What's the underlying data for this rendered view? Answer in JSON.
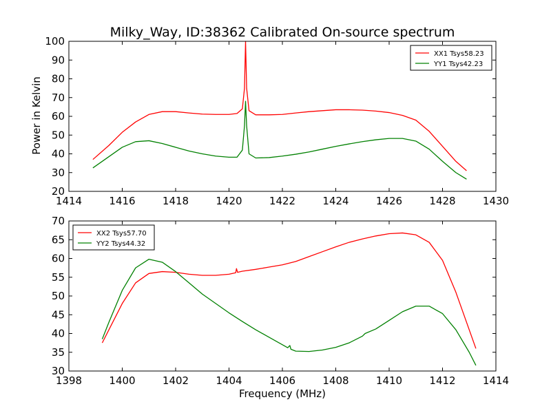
{
  "figure": {
    "title": "Milky_Way, ID:38362 Calibrated On-source spectrum",
    "ylabel": "Power in Kelvin",
    "xlabel": "Frequency (MHz)"
  },
  "chart_data": [
    {
      "type": "line",
      "xlim": [
        1414,
        1430
      ],
      "ylim": [
        20,
        100
      ],
      "xticks": [
        1414,
        1416,
        1418,
        1420,
        1422,
        1424,
        1426,
        1428,
        1430
      ],
      "yticks": [
        20,
        30,
        40,
        50,
        60,
        70,
        80,
        90,
        100
      ],
      "ylabel": "Power in Kelvin",
      "grid": false,
      "legend_position": "top-right",
      "series": [
        {
          "name": "XX1 Tsys58.23",
          "color": "#ff0000",
          "points": [
            [
              1414.9,
              37
            ],
            [
              1415.5,
              44.5
            ],
            [
              1416.0,
              51.5
            ],
            [
              1416.5,
              57
            ],
            [
              1417.0,
              61
            ],
            [
              1417.5,
              62.5
            ],
            [
              1418.0,
              62.5
            ],
            [
              1418.5,
              61.8
            ],
            [
              1419.0,
              61.2
            ],
            [
              1419.5,
              61
            ],
            [
              1420.0,
              61
            ],
            [
              1420.3,
              61.5
            ],
            [
              1420.5,
              64
            ],
            [
              1420.58,
              75
            ],
            [
              1420.62,
              100
            ],
            [
              1420.66,
              75
            ],
            [
              1420.75,
              63
            ],
            [
              1421.0,
              60.8
            ],
            [
              1421.5,
              60.8
            ],
            [
              1422.0,
              61
            ],
            [
              1422.5,
              61.8
            ],
            [
              1423.0,
              62.5
            ],
            [
              1423.5,
              63
            ],
            [
              1424.0,
              63.5
            ],
            [
              1424.5,
              63.5
            ],
            [
              1425.0,
              63.3
            ],
            [
              1425.5,
              62.8
            ],
            [
              1426.0,
              62
            ],
            [
              1426.5,
              60.5
            ],
            [
              1427.0,
              58
            ],
            [
              1427.5,
              52
            ],
            [
              1428.0,
              44
            ],
            [
              1428.5,
              36
            ],
            [
              1428.9,
              31
            ]
          ]
        },
        {
          "name": "YY1 Tsys42.23",
          "color": "#008000",
          "points": [
            [
              1414.9,
              32.5
            ],
            [
              1415.5,
              38.5
            ],
            [
              1416.0,
              43.5
            ],
            [
              1416.5,
              46.5
            ],
            [
              1417.0,
              47
            ],
            [
              1417.5,
              45.5
            ],
            [
              1418.0,
              43.5
            ],
            [
              1418.5,
              41.5
            ],
            [
              1419.0,
              40
            ],
            [
              1419.5,
              38.8
            ],
            [
              1420.0,
              38.2
            ],
            [
              1420.3,
              38.2
            ],
            [
              1420.5,
              42
            ],
            [
              1420.58,
              55
            ],
            [
              1420.62,
              68
            ],
            [
              1420.66,
              55
            ],
            [
              1420.75,
              40
            ],
            [
              1421.0,
              37.8
            ],
            [
              1421.5,
              38
            ],
            [
              1422.0,
              38.8
            ],
            [
              1422.5,
              39.8
            ],
            [
              1423.0,
              41
            ],
            [
              1423.5,
              42.5
            ],
            [
              1424.0,
              44
            ],
            [
              1424.5,
              45.3
            ],
            [
              1425.0,
              46.5
            ],
            [
              1425.5,
              47.5
            ],
            [
              1426.0,
              48.2
            ],
            [
              1426.5,
              48.2
            ],
            [
              1427.0,
              46.8
            ],
            [
              1427.5,
              42.5
            ],
            [
              1428.0,
              36
            ],
            [
              1428.5,
              30
            ],
            [
              1428.9,
              26.5
            ]
          ]
        }
      ]
    },
    {
      "type": "line",
      "xlim": [
        1398,
        1414
      ],
      "ylim": [
        30,
        70
      ],
      "xticks": [
        1398,
        1400,
        1402,
        1404,
        1406,
        1408,
        1410,
        1412,
        1414
      ],
      "yticks": [
        30,
        35,
        40,
        45,
        50,
        55,
        60,
        65,
        70
      ],
      "xlabel": "Frequency (MHz)",
      "grid": false,
      "legend_position": "top-left",
      "series": [
        {
          "name": "XX2 Tsys57.70",
          "color": "#ff0000",
          "points": [
            [
              1399.25,
              37.5
            ],
            [
              1399.5,
              41
            ],
            [
              1400.0,
              48
            ],
            [
              1400.5,
              53.5
            ],
            [
              1401.0,
              56
            ],
            [
              1401.5,
              56.5
            ],
            [
              1402.0,
              56.3
            ],
            [
              1402.5,
              55.8
            ],
            [
              1403.0,
              55.5
            ],
            [
              1403.5,
              55.5
            ],
            [
              1404.0,
              55.8
            ],
            [
              1404.25,
              56.2
            ],
            [
              1404.28,
              57.3
            ],
            [
              1404.32,
              56.3
            ],
            [
              1404.5,
              56.6
            ],
            [
              1405.0,
              57.1
            ],
            [
              1405.5,
              57.7
            ],
            [
              1406.0,
              58.3
            ],
            [
              1406.5,
              59.2
            ],
            [
              1407.0,
              60.5
            ],
            [
              1407.5,
              61.8
            ],
            [
              1408.0,
              63.1
            ],
            [
              1408.5,
              64.3
            ],
            [
              1409.0,
              65.2
            ],
            [
              1409.5,
              66
            ],
            [
              1410.0,
              66.6
            ],
            [
              1410.5,
              66.8
            ],
            [
              1411.0,
              66.3
            ],
            [
              1411.5,
              64.3
            ],
            [
              1412.0,
              59.5
            ],
            [
              1412.5,
              51
            ],
            [
              1413.0,
              41
            ],
            [
              1413.25,
              36
            ]
          ]
        },
        {
          "name": "YY2 Tsys44.32",
          "color": "#008000",
          "points": [
            [
              1399.25,
              38.5
            ],
            [
              1399.5,
              43
            ],
            [
              1400.0,
              51.5
            ],
            [
              1400.5,
              57.5
            ],
            [
              1401.0,
              59.8
            ],
            [
              1401.5,
              59
            ],
            [
              1402.0,
              56.5
            ],
            [
              1402.5,
              53.5
            ],
            [
              1403.0,
              50.5
            ],
            [
              1403.5,
              48
            ],
            [
              1404.0,
              45.5
            ],
            [
              1404.5,
              43.2
            ],
            [
              1405.0,
              41
            ],
            [
              1405.5,
              39
            ],
            [
              1406.0,
              37
            ],
            [
              1406.2,
              36.2
            ],
            [
              1406.28,
              36.8
            ],
            [
              1406.32,
              35.8
            ],
            [
              1406.5,
              35.3
            ],
            [
              1407.0,
              35.2
            ],
            [
              1407.5,
              35.6
            ],
            [
              1408.0,
              36.3
            ],
            [
              1408.5,
              37.5
            ],
            [
              1409.0,
              39.3
            ],
            [
              1409.1,
              40
            ],
            [
              1409.5,
              41.2
            ],
            [
              1410.0,
              43.5
            ],
            [
              1410.5,
              45.8
            ],
            [
              1411.0,
              47.3
            ],
            [
              1411.5,
              47.3
            ],
            [
              1412.0,
              45.3
            ],
            [
              1412.5,
              41
            ],
            [
              1413.0,
              35
            ],
            [
              1413.25,
              31.5
            ]
          ]
        }
      ]
    }
  ]
}
